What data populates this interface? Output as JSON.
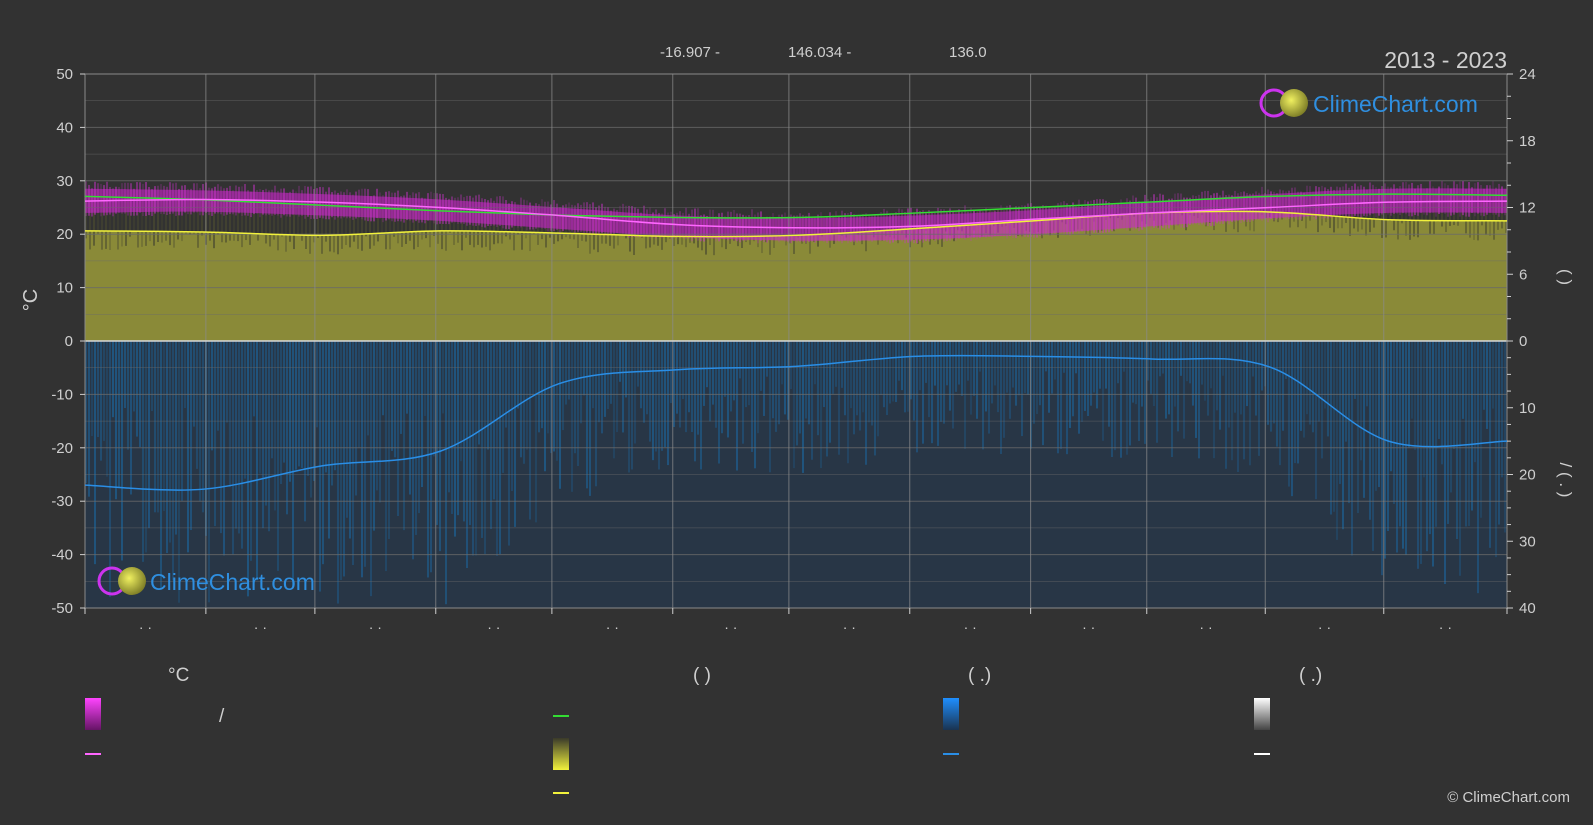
{
  "header": {
    "period": "2013 - 2023",
    "lat": "-16.907 -",
    "lon": "146.034 -",
    "elev": "136.0"
  },
  "brand": {
    "name": "ClimeChart.com",
    "copyright": "© ClimeChart.com"
  },
  "legend": {
    "group_temp_title": "°C",
    "group_sun_title": "(           )",
    "group_rain_title": "(    .)",
    "group_snow_title": "(    .)",
    "temp_range_sep": "/"
  },
  "axis_right_text": {
    "top": "(     )",
    "bottom": "/  (  .  )"
  },
  "colors": {
    "background": "#323232",
    "grid": "#6a6a6a",
    "temp_range": "#cc22cc",
    "temp_mean": "#ff66ff",
    "daylight": "#33dd33",
    "sunshine_fill": "#9a9a3a",
    "sunshine_line": "#f2f23c",
    "precip_fill": "#1f5a88",
    "precip_line": "#2a8ee6",
    "snow": "#ffffff"
  },
  "chart_data": {
    "type": "line",
    "x_tick_labels": [
      "· ·",
      "· ·",
      "· ·",
      "· ·",
      "· ·",
      "· ·",
      "· ·",
      "· ·",
      "· ·",
      "· ·",
      "· ·",
      "· ·"
    ],
    "left_axis": {
      "label": "°C",
      "ylim": [
        -50,
        50
      ],
      "ticks": [
        50,
        40,
        30,
        20,
        10,
        0,
        -10,
        -20,
        -30,
        -40,
        -50
      ]
    },
    "right_axis_top": {
      "ylim": [
        0,
        24
      ],
      "ticks": [
        24,
        18,
        12,
        6,
        0
      ]
    },
    "right_axis_bottom": {
      "ylim": [
        0,
        40
      ],
      "ticks": [
        10,
        20,
        30,
        40
      ]
    },
    "grid": true,
    "x_month_pos": [
      0,
      1,
      2,
      3,
      4,
      5,
      6,
      7,
      8,
      9,
      10,
      11,
      12
    ],
    "series": [
      {
        "key": "temp_max",
        "values": [
          28.5,
          28.2,
          27.5,
          26.5,
          25.0,
          23.5,
          23.0,
          23.5,
          24.5,
          26.0,
          27.5,
          28.5,
          28.5
        ]
      },
      {
        "key": "temp_min",
        "values": [
          24.0,
          24.2,
          23.5,
          22.5,
          21.0,
          19.5,
          18.8,
          19.0,
          20.0,
          21.5,
          23.0,
          24.0,
          24.0
        ]
      },
      {
        "key": "temp_mean",
        "values": [
          26.2,
          26.5,
          26.0,
          25.0,
          23.5,
          21.8,
          21.2,
          21.5,
          22.8,
          24.0,
          25.0,
          26.0,
          26.2
        ]
      },
      {
        "key": "daylight",
        "values": [
          13.0,
          12.7,
          12.2,
          11.7,
          11.3,
          11.1,
          11.1,
          11.5,
          12.0,
          12.5,
          13.0,
          13.2,
          13.1
        ]
      },
      {
        "key": "sunshine",
        "values": [
          9.9,
          9.8,
          9.5,
          9.9,
          9.7,
          9.4,
          9.5,
          10.1,
          10.8,
          11.5,
          11.6,
          10.9,
          10.8
        ]
      },
      {
        "key": "precipitation",
        "values": [
          21.6,
          22.2,
          18.7,
          16.5,
          6.4,
          4.3,
          3.8,
          2.3,
          2.3,
          2.7,
          3.9,
          15.0,
          15.0
        ]
      }
    ]
  }
}
